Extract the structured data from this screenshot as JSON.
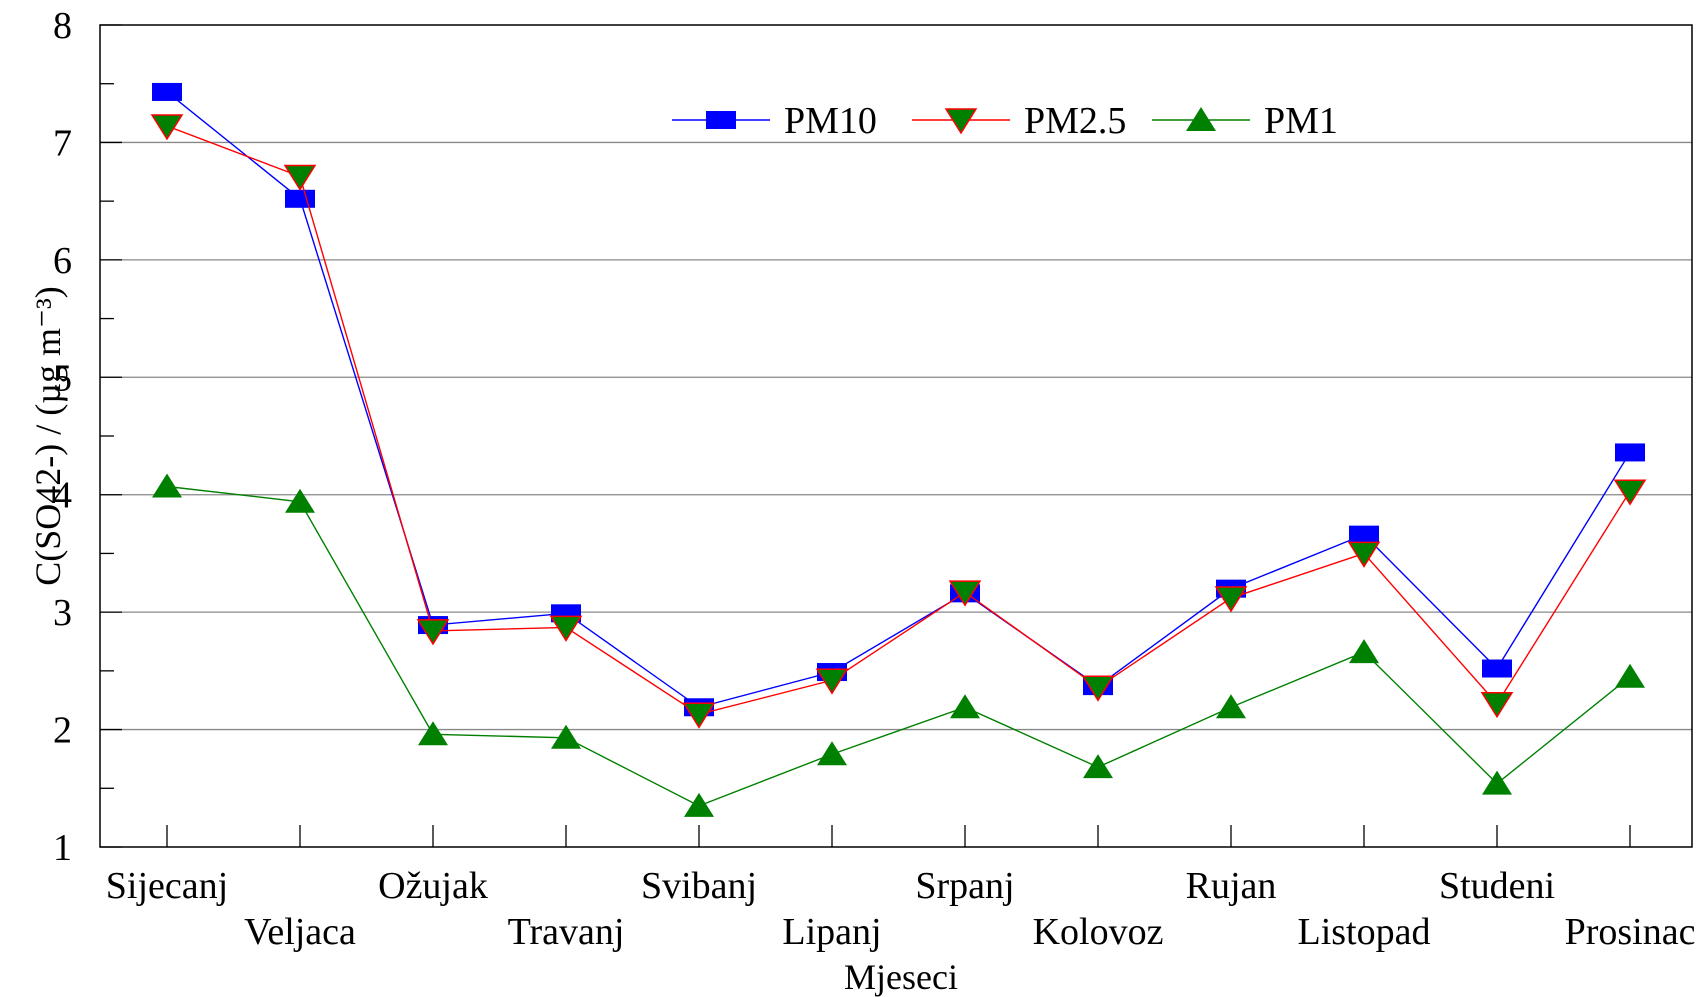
{
  "chart_data": {
    "type": "line",
    "title": "",
    "xlabel": "Mjeseci",
    "ylabel": "C(SO42-) / (µg m⁻³)",
    "ylim": [
      1,
      8
    ],
    "yticks": [
      "1",
      "2",
      "3",
      "4",
      "5",
      "6",
      "7",
      "8"
    ],
    "grid": "horizontal",
    "legend": "top-center",
    "categories": [
      "Sijecanj",
      "Veljaca",
      "Ožujak",
      "Travanj",
      "Svibanj",
      "Lipanj",
      "Srpanj",
      "Kolovoz",
      "Rujan",
      "Listopad",
      "Studeni",
      "Prosinac"
    ],
    "series": [
      {
        "name": "PM10",
        "color": "#0000ff",
        "marker": "square",
        "values": [
          7.43,
          6.52,
          2.89,
          2.99,
          2.19,
          2.49,
          3.16,
          2.37,
          3.2,
          3.66,
          2.52,
          4.36
        ]
      },
      {
        "name": "PM2.5",
        "color": "#ff0000",
        "marker": "triangle-down",
        "markerColor": "#008000",
        "values": [
          7.14,
          6.71,
          2.84,
          2.87,
          2.13,
          2.42,
          3.17,
          2.36,
          3.12,
          3.5,
          2.22,
          4.03
        ]
      },
      {
        "name": "PM1",
        "color": "#008000",
        "marker": "triangle-up",
        "values": [
          4.07,
          3.94,
          1.96,
          1.93,
          1.35,
          1.79,
          2.19,
          1.68,
          2.19,
          2.66,
          1.54,
          2.45
        ]
      }
    ]
  }
}
